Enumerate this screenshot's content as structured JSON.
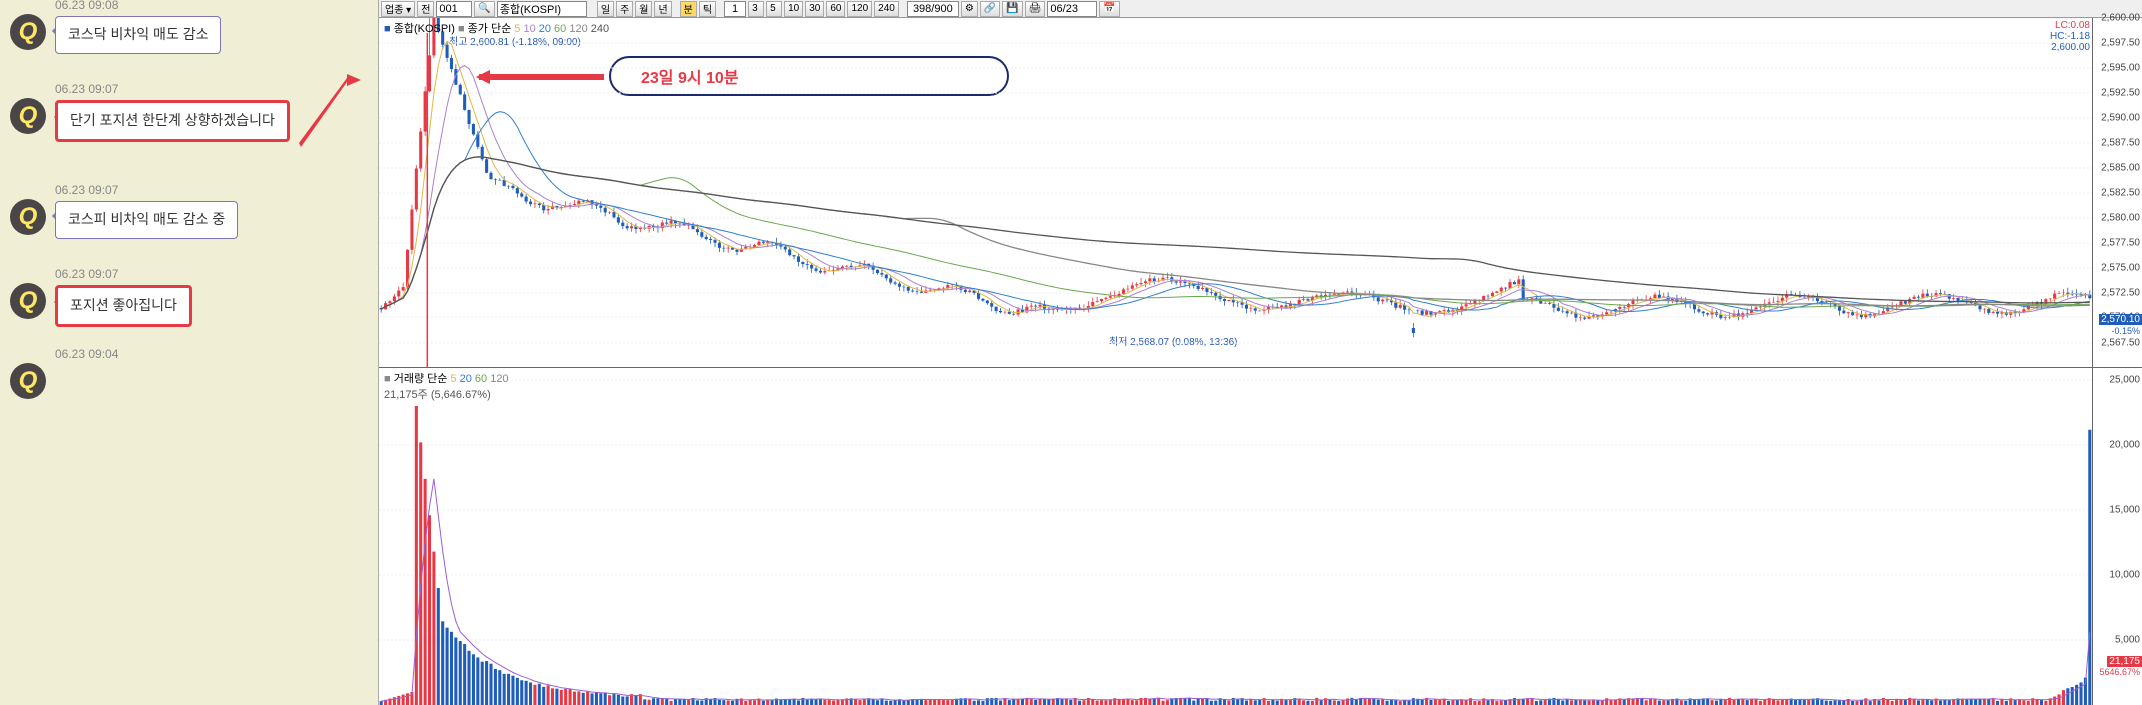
{
  "chat": {
    "messages": [
      {
        "ts": "06.23 09:08",
        "text": "코스닥 비차익 매도 감소",
        "highlight": false
      },
      {
        "ts": "06.23 09:07",
        "text": "단기 포지션 한단계 상향하겠습니다",
        "highlight": true
      },
      {
        "ts": "06.23 09:07",
        "text": "코스피 비차익 매도 감소 중",
        "highlight": false
      },
      {
        "ts": "06.23 09:07",
        "text": "포지션 좋아집니다",
        "highlight": true
      },
      {
        "ts": "06.23 09:04",
        "text": "",
        "highlight": false
      }
    ],
    "avatar_letter": "Q"
  },
  "toolbar": {
    "code": "001",
    "codename": "종합(KOSPI)",
    "nav_prev": "전",
    "period_il": "일",
    "period_ju": "주",
    "period_wol": "월",
    "period_nyeon": "년",
    "period_boon": "분",
    "period_tick": "틱",
    "interval_1": "1",
    "intervals": [
      "3",
      "5",
      "10",
      "30",
      "60",
      "120",
      "240"
    ],
    "pos": "398/900",
    "date": "06/23"
  },
  "price_chart": {
    "legend_name": "종합(KOSPI)",
    "ma_label": "종가 단순",
    "ma_periods": [
      "5",
      "10",
      "20",
      "60",
      "120",
      "240"
    ],
    "ma_colors": [
      "#e0b846",
      "#a882d0",
      "#2f7fd0",
      "#6aa84f",
      "#888888",
      "#555555"
    ],
    "high_label": "최고 2,600.81 (-1.18%, 09:00)",
    "low_label": "최저 2,568.07 (0.08%, 13:36)",
    "annotation_text": "23일 9시 10분",
    "lc_label": "LC:0.08",
    "hc_label": "HC:-1.18",
    "top_value": "2,600.00",
    "current_value": "2,570.10",
    "current_pct": "-0.15%",
    "ymin": 2565,
    "ymax": 2600,
    "yticks": [
      "2,600.00",
      "2,597.50",
      "2,595.00",
      "2,592.50",
      "2,590.00",
      "2,587.50",
      "2,585.00",
      "2,582.50",
      "2,580.00",
      "2,577.50",
      "2,575.00",
      "2,572.50",
      "2,570.10",
      "2,567.50"
    ],
    "ytick_vals": [
      2600,
      2597.5,
      2595,
      2592.5,
      2590,
      2587.5,
      2585,
      2582.5,
      2580,
      2577.5,
      2575,
      2572.5,
      2570.1,
      2567.5
    ]
  },
  "volume_chart": {
    "legend_label": "거래량 단순",
    "legend_periods": [
      "5",
      "20",
      "60",
      "120"
    ],
    "legend_colors": [
      "#e0b846",
      "#2f7fd0",
      "#6aa84f",
      "#888888"
    ],
    "current_label": "21,175주 (5,646.67%)",
    "ymax": 25000,
    "yticks": [
      "25,000",
      "20,000",
      "15,000",
      "10,000",
      "5,000"
    ],
    "ytick_vals": [
      25000,
      20000,
      15000,
      10000,
      5000
    ],
    "current_value": "21,175",
    "current_pct": "5646.67%"
  },
  "candles": {
    "up_color": "#e63946",
    "down_color": "#1f5db8",
    "wick_color": "#555"
  }
}
